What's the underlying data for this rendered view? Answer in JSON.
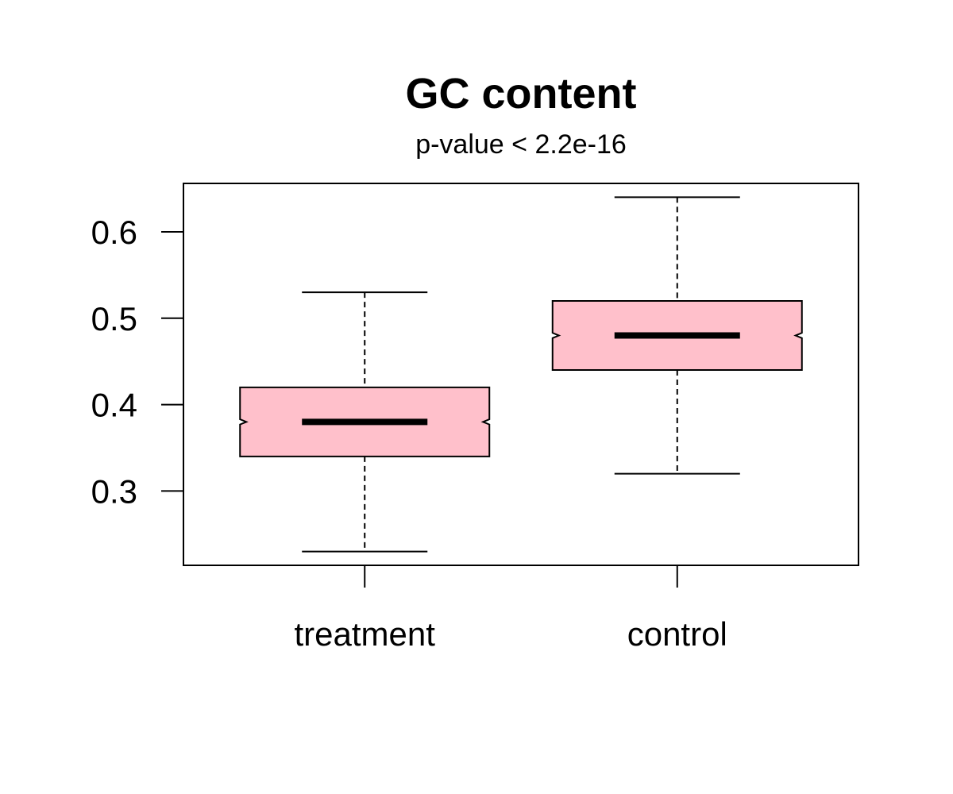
{
  "chart_data": {
    "type": "boxplot",
    "title": "GC content",
    "subtitle": "p-value < 2.2e-16",
    "xlabel": "",
    "ylabel": "",
    "categories": [
      "treatment",
      "control"
    ],
    "boxes": [
      {
        "name": "treatment",
        "whisker_low": 0.23,
        "q1": 0.34,
        "median": 0.38,
        "q3": 0.42,
        "whisker_high": 0.53,
        "notch_low": 0.377,
        "notch_high": 0.383
      },
      {
        "name": "control",
        "whisker_low": 0.32,
        "q1": 0.44,
        "median": 0.48,
        "q3": 0.52,
        "whisker_high": 0.64,
        "notch_low": 0.477,
        "notch_high": 0.483
      }
    ],
    "ylim": [
      0.214,
      0.656
    ],
    "yticks": [
      0.3,
      0.4,
      0.5,
      0.6
    ],
    "ytick_labels": [
      "0.3",
      "0.4",
      "0.5",
      "0.6"
    ],
    "notched": true,
    "grid": false,
    "colors": {
      "box_fill": "#FFC0CB",
      "outline": "#000000"
    }
  }
}
